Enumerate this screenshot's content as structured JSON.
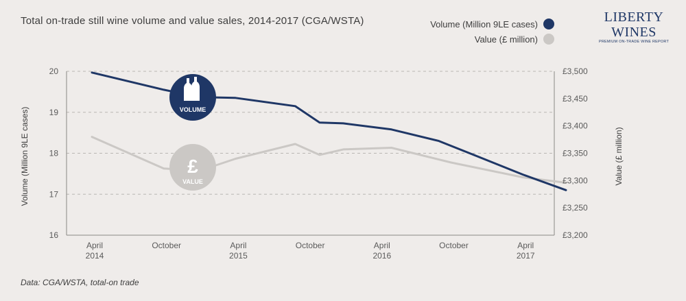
{
  "header": {
    "title": "Total on-trade still wine volume and value sales, 2014-2017 (CGA/WSTA)"
  },
  "legend": {
    "items": [
      {
        "label": "Volume (Million 9LE cases)",
        "color": "#1f3766"
      },
      {
        "label": "Value (£ million)",
        "color": "#cbc8c5"
      }
    ]
  },
  "logo": {
    "name": "LIBERTY WINES",
    "tagline": "PREMIUM ON-TRADE WINE REPORT"
  },
  "footer": {
    "source": "Data: CGA/WSTA, total-on trade"
  },
  "badges": {
    "volume_label": "VOLUME",
    "volume_icon": "wine-bottles-icon",
    "value_label": "VALUE",
    "value_icon": "pound-sign-icon",
    "value_symbol": "£"
  },
  "chart_data": {
    "type": "line",
    "title": "Total on-trade still wine volume and value sales, 2014-2017 (CGA/WSTA)",
    "x_ticks": [
      {
        "line1": "April",
        "line2": "2014"
      },
      {
        "line1": "October",
        "line2": ""
      },
      {
        "line1": "April",
        "line2": "2015"
      },
      {
        "line1": "October",
        "line2": ""
      },
      {
        "line1": "April",
        "line2": "2016"
      },
      {
        "line1": "October",
        "line2": ""
      },
      {
        "line1": "April",
        "line2": "2017"
      }
    ],
    "xlim": [
      0,
      6.6
    ],
    "y_left": {
      "label": "Volume (Million 9LE cases)",
      "ylim": [
        16,
        20
      ],
      "ticks": [
        "20",
        "19",
        "18",
        "17",
        "16"
      ]
    },
    "y_right": {
      "label": "Value (£ million)",
      "ylim": [
        3200,
        3500
      ],
      "ticks": [
        "£3,500",
        "£3,450",
        "£3,400",
        "£3,350",
        "£3,300",
        "£3,250",
        "£3,200"
      ]
    },
    "grid": "horizontal dashed",
    "series": [
      {
        "name": "Volume (Million 9LE cases)",
        "axis": "left",
        "color": "#1f3766",
        "x": [
          0,
          1,
          1.5,
          2,
          2.83,
          3.17,
          3.5,
          4.17,
          4.83,
          5.33,
          6,
          6.6
        ],
        "y": [
          19.97,
          19.55,
          19.37,
          19.35,
          19.15,
          18.75,
          18.73,
          18.58,
          18.3,
          17.95,
          17.48,
          17.1
        ]
      },
      {
        "name": "Value (£ million)",
        "axis": "right",
        "color": "#cbc8c5",
        "x": [
          0,
          1,
          1.5,
          2,
          2.83,
          3.17,
          3.5,
          4.17,
          5,
          6,
          6.6
        ],
        "y": [
          3380,
          3322,
          3318,
          3340,
          3367,
          3347,
          3357,
          3360,
          3333,
          3306,
          3296
        ]
      }
    ]
  }
}
